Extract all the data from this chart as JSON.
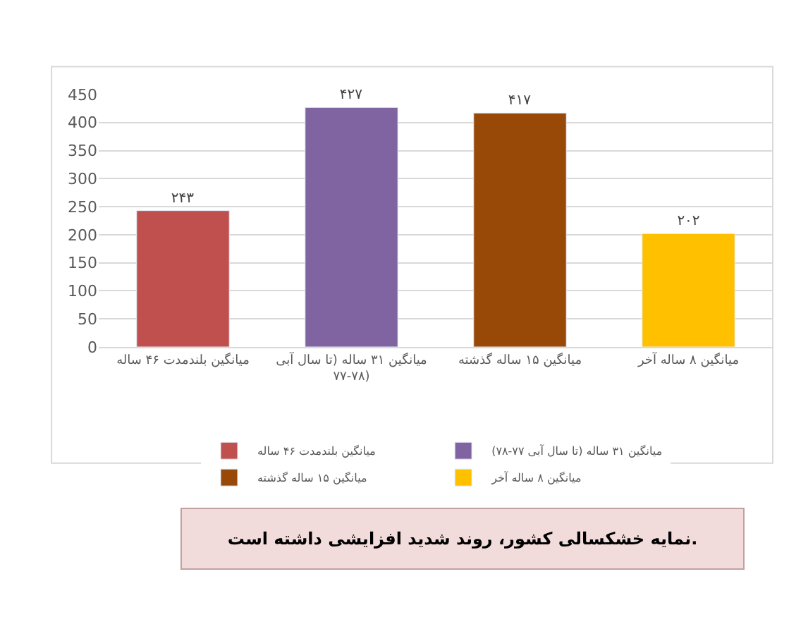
{
  "chart_data": {
    "type": "bar",
    "categories": [
      "میانگین بلندمدت ۴۶ ساله",
      "میانگین ۳۱ ساله (تا سال آبی ۷۷-۷۸)",
      "میانگین ۱۵ ساله گذشته",
      "میانگین ۸ ساله آخر"
    ],
    "series": [
      {
        "name": "میانگین بلندمدت ۴۶ ساله",
        "color": "#c0504d",
        "values": [
          243,
          null,
          null,
          null
        ],
        "value_labels": [
          "۲۴۳",
          null,
          null,
          null
        ]
      },
      {
        "name": "میانگین ۳۱ ساله (تا سال آبی ۷۷-۷۸)",
        "color": "#8064a2",
        "values": [
          null,
          427,
          null,
          null
        ],
        "value_labels": [
          null,
          "۴۲۷",
          null,
          null
        ]
      },
      {
        "name": "میانگین ۱۵ ساله گذشته",
        "color": "#984807",
        "values": [
          null,
          null,
          417,
          null
        ],
        "value_labels": [
          null,
          null,
          "۴۱۷",
          null
        ]
      },
      {
        "name": "میانگین ۸ ساله آخر",
        "color": "#ffc000",
        "values": [
          null,
          null,
          null,
          202
        ],
        "value_labels": [
          null,
          null,
          null,
          "۲۰۲"
        ]
      }
    ],
    "ylim": [
      0,
      450
    ],
    "yticks": [
      0,
      50,
      100,
      150,
      200,
      250,
      300,
      350,
      400,
      450
    ],
    "grid": "y",
    "legend": "bottom",
    "annotations": [
      "نمایه خشکسالی کشور، روند شدید افزایشی داشته است."
    ]
  }
}
